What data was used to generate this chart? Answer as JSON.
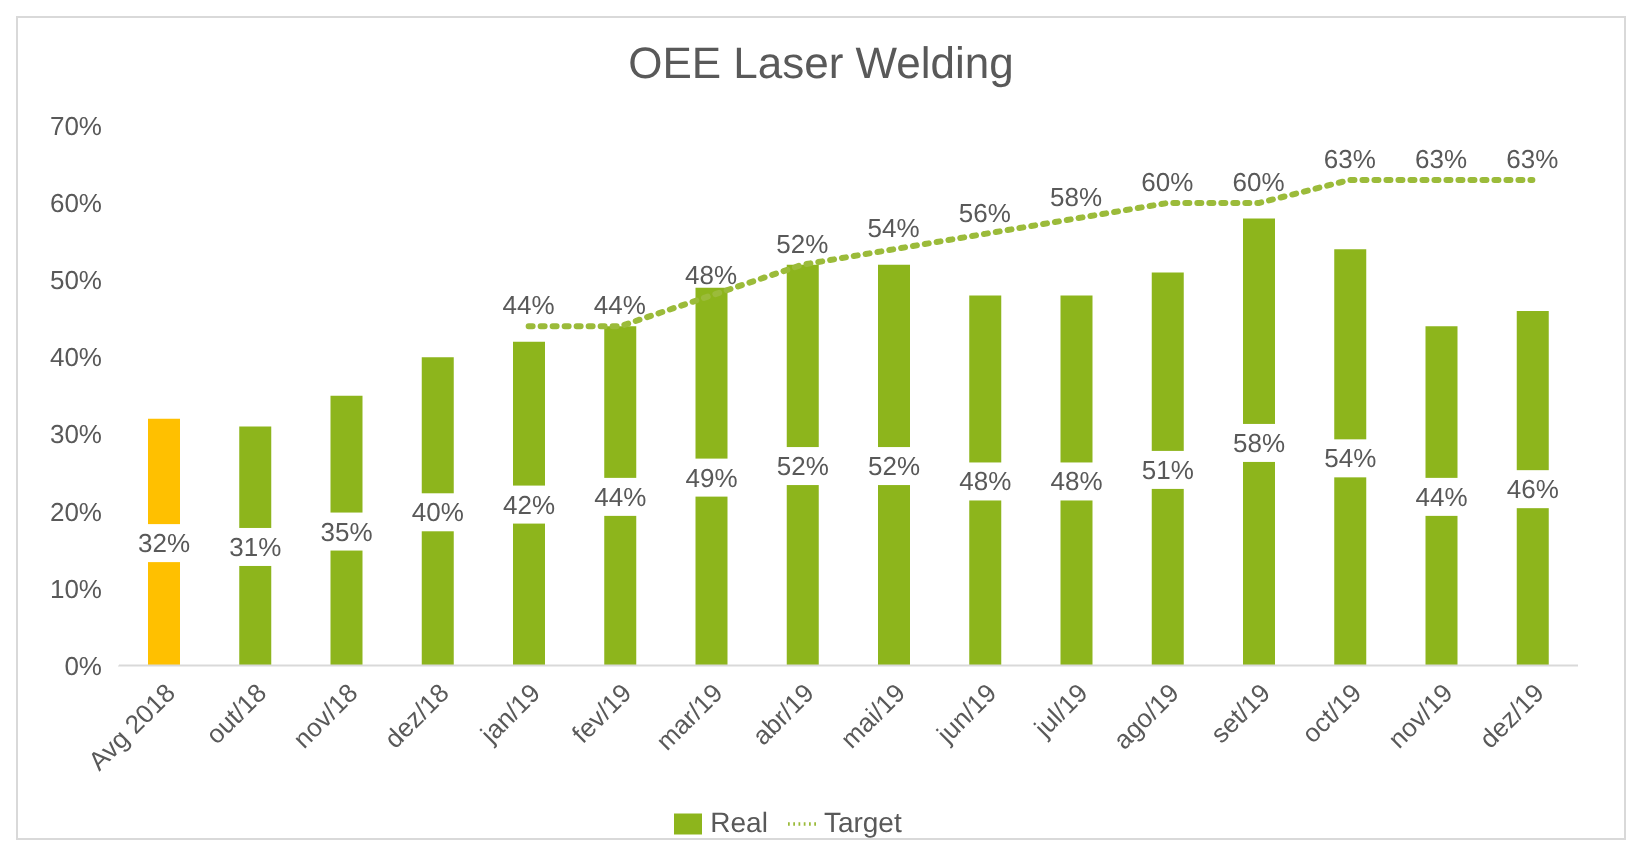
{
  "chart_data": {
    "type": "bar",
    "title": "OEE Laser Welding",
    "categories": [
      "Avg 2018",
      "out/18",
      "nov/18",
      "dez/18",
      "jan/19",
      "fev/19",
      "mar/19",
      "abr/19",
      "mai/19",
      "jun/19",
      "jul/19",
      "ago/19",
      "set/19",
      "oct/19",
      "nov/19",
      "dez/19"
    ],
    "series": [
      {
        "name": "Real",
        "color": "#8db51c",
        "colors": [
          "#ffc000",
          "#8db51c",
          "#8db51c",
          "#8db51c",
          "#8db51c",
          "#8db51c",
          "#8db51c",
          "#8db51c",
          "#8db51c",
          "#8db51c",
          "#8db51c",
          "#8db51c",
          "#8db51c",
          "#8db51c",
          "#8db51c",
          "#8db51c"
        ],
        "values": [
          32,
          31,
          35,
          40,
          42,
          44,
          49,
          52,
          52,
          48,
          48,
          51,
          58,
          54,
          44,
          46
        ],
        "value_labels": [
          "32%",
          "31%",
          "35%",
          "40%",
          "42%",
          "44%",
          "49%",
          "52%",
          "52%",
          "48%",
          "48%",
          "51%",
          "58%",
          "54%",
          "44%",
          "46%"
        ]
      },
      {
        "name": "Target",
        "type": "line",
        "color": "#9bbb3a",
        "line_style": "dotted",
        "marker": "none",
        "values": [
          null,
          null,
          null,
          null,
          44,
          44,
          48,
          52,
          54,
          56,
          58,
          60,
          60,
          63,
          63,
          63
        ],
        "value_labels": [
          null,
          null,
          null,
          null,
          "44%",
          "44%",
          "48%",
          "52%",
          "54%",
          "56%",
          "58%",
          "60%",
          "60%",
          "63%",
          "63%",
          "63%"
        ]
      }
    ],
    "ylim": [
      0,
      70
    ],
    "yticks": [
      {
        "value": 0,
        "label": "0%"
      },
      {
        "value": 10,
        "label": "10%"
      },
      {
        "value": 20,
        "label": "20%"
      },
      {
        "value": 30,
        "label": "30%"
      },
      {
        "value": 40,
        "label": "40%"
      },
      {
        "value": 50,
        "label": "50%"
      },
      {
        "value": 60,
        "label": "60%"
      },
      {
        "value": 70,
        "label": "70%"
      }
    ],
    "grid": false,
    "legend": "bottom"
  }
}
